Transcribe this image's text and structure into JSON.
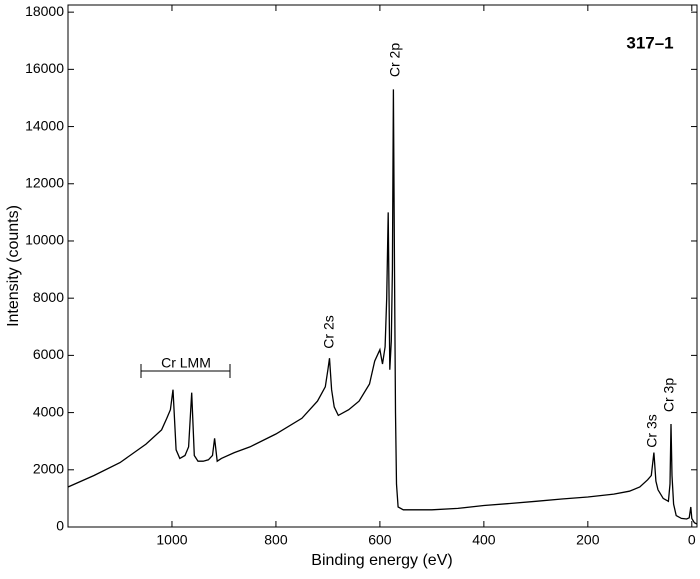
{
  "chart_data": {
    "type": "line",
    "title": "317–1",
    "x_label": "Binding energy (eV)",
    "y_label": "Intensity (counts)",
    "annotations": [
      "Cr 2p",
      "Cr 2s",
      "Cr LMM",
      "Cr 3s",
      "Cr 3p"
    ],
    "xlim": [
      1200,
      -10
    ],
    "ylim": [
      0,
      18250
    ],
    "xticks": [
      1000,
      800,
      600,
      400,
      200,
      0
    ],
    "yticks": [
      0,
      2000,
      4000,
      6000,
      8000,
      10000,
      12000,
      14000,
      16000,
      18000
    ],
    "grid": false,
    "series": [
      {
        "name": "317-1",
        "color": "#000000",
        "x": [
          1200,
          1150,
          1100,
          1050,
          1020,
          1010,
          1003,
          998,
          992,
          985,
          975,
          968,
          962,
          957,
          950,
          940,
          930,
          922,
          918,
          913,
          905,
          880,
          850,
          800,
          750,
          720,
          705,
          700,
          697,
          693,
          688,
          680,
          660,
          640,
          620,
          610,
          600,
          595,
          590,
          587,
          584,
          581,
          578,
          576,
          574,
          572,
          570,
          568,
          565,
          555,
          500,
          450,
          400,
          350,
          300,
          250,
          200,
          150,
          120,
          100,
          85,
          78,
          73,
          69,
          65,
          55,
          45,
          42,
          40,
          38,
          35,
          30,
          20,
          10,
          5,
          2,
          0,
          -5,
          -10
        ],
        "values": [
          1400,
          1800,
          2250,
          2900,
          3400,
          3800,
          4100,
          4800,
          2700,
          2400,
          2500,
          2800,
          4700,
          2500,
          2300,
          2300,
          2350,
          2500,
          3100,
          2300,
          2400,
          2600,
          2800,
          3250,
          3800,
          4400,
          4900,
          5500,
          5900,
          4800,
          4200,
          3900,
          4100,
          4400,
          5000,
          5800,
          6200,
          5700,
          6300,
          8000,
          11000,
          5500,
          6500,
          9000,
          15300,
          9000,
          4000,
          1500,
          700,
          600,
          600,
          650,
          750,
          820,
          900,
          980,
          1050,
          1150,
          1250,
          1400,
          1650,
          1800,
          2600,
          1600,
          1300,
          1000,
          900,
          1500,
          3600,
          1800,
          800,
          400,
          300,
          280,
          320,
          700,
          300,
          150,
          100
        ]
      }
    ]
  }
}
